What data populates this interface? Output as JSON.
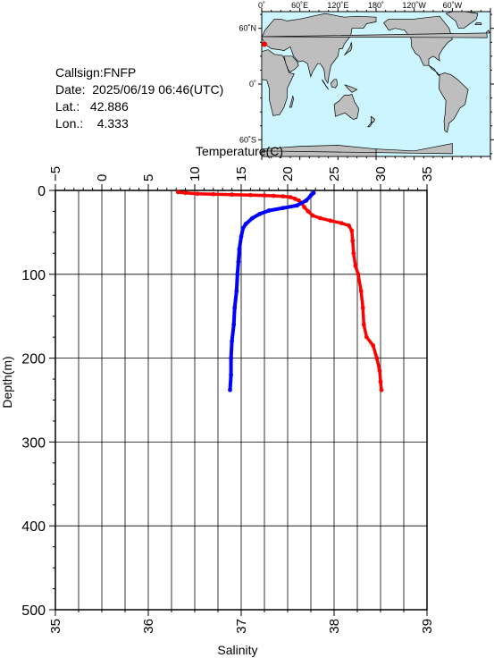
{
  "info": {
    "callsign": "Callsign:FNFP",
    "date": "Date:  2025/06/19 06:46(UTC)",
    "lat": "Lat.:   42.886",
    "lon": "Lon.:    4.333"
  },
  "map": {
    "top_labels": [
      "0˚",
      "60˚E",
      "120˚E",
      "180˚",
      "120˚W",
      "60˚W"
    ],
    "side_labels": [
      "60˚N",
      "0˚",
      "60˚S"
    ],
    "ocean_color": "#ccf5ff",
    "land_color": "#bebebe",
    "marker_color": "#ff0000",
    "station": {
      "lon": 4.333,
      "lat": 42.886
    }
  },
  "chart_data": {
    "type": "line",
    "x_top_label": "Temperature(C)",
    "x_bottom_label": "Salinity",
    "ylabel": "Depth(m)",
    "temperature_ticks": [
      "−5",
      "0",
      "5",
      "10",
      "15",
      "20",
      "25",
      "30",
      "35"
    ],
    "salinity_ticks": [
      "35",
      "36",
      "37",
      "38",
      "39"
    ],
    "depth_ticks": [
      "0",
      "100",
      "200",
      "300",
      "400",
      "500"
    ],
    "temperature_range": [
      -5,
      35
    ],
    "salinity_range": [
      35,
      39
    ],
    "depth_range": [
      0,
      500
    ],
    "grid": true,
    "series": [
      {
        "quantity": "temperature",
        "color": "#ff0000",
        "points": [
          [
            8.2,
            2
          ],
          [
            9.0,
            3
          ],
          [
            10.3,
            4
          ],
          [
            12.0,
            4.5
          ],
          [
            14.0,
            5
          ],
          [
            16.0,
            5.5
          ],
          [
            17.5,
            6
          ],
          [
            18.5,
            6.5
          ],
          [
            19.5,
            7
          ],
          [
            20.3,
            8
          ],
          [
            20.8,
            10
          ],
          [
            21.2,
            12
          ],
          [
            21.5,
            15
          ],
          [
            21.8,
            20
          ],
          [
            22.2,
            25
          ],
          [
            22.7,
            30
          ],
          [
            23.5,
            33
          ],
          [
            24.6,
            36
          ],
          [
            25.8,
            39
          ],
          [
            26.6,
            42
          ],
          [
            26.9,
            48
          ],
          [
            27.0,
            60
          ],
          [
            27.1,
            75
          ],
          [
            27.3,
            90
          ],
          [
            27.6,
            100
          ],
          [
            27.9,
            120
          ],
          [
            28.1,
            140
          ],
          [
            28.2,
            160
          ],
          [
            28.5,
            175
          ],
          [
            29.2,
            185
          ],
          [
            29.6,
            200
          ],
          [
            29.9,
            215
          ],
          [
            30.0,
            228
          ],
          [
            30.1,
            238
          ]
        ]
      },
      {
        "quantity": "salinity",
        "color": "#0000ff",
        "points": [
          [
            37.78,
            3
          ],
          [
            37.75,
            6
          ],
          [
            37.7,
            12
          ],
          [
            37.6,
            18
          ],
          [
            37.45,
            21
          ],
          [
            37.3,
            24
          ],
          [
            37.2,
            28
          ],
          [
            37.12,
            33
          ],
          [
            37.05,
            40
          ],
          [
            37.02,
            45
          ],
          [
            37.0,
            55
          ],
          [
            36.98,
            70
          ],
          [
            36.97,
            85
          ],
          [
            36.96,
            100
          ],
          [
            36.95,
            120
          ],
          [
            36.93,
            140
          ],
          [
            36.92,
            160
          ],
          [
            36.9,
            180
          ],
          [
            36.89,
            200
          ],
          [
            36.89,
            220
          ],
          [
            36.88,
            238
          ]
        ]
      }
    ]
  }
}
